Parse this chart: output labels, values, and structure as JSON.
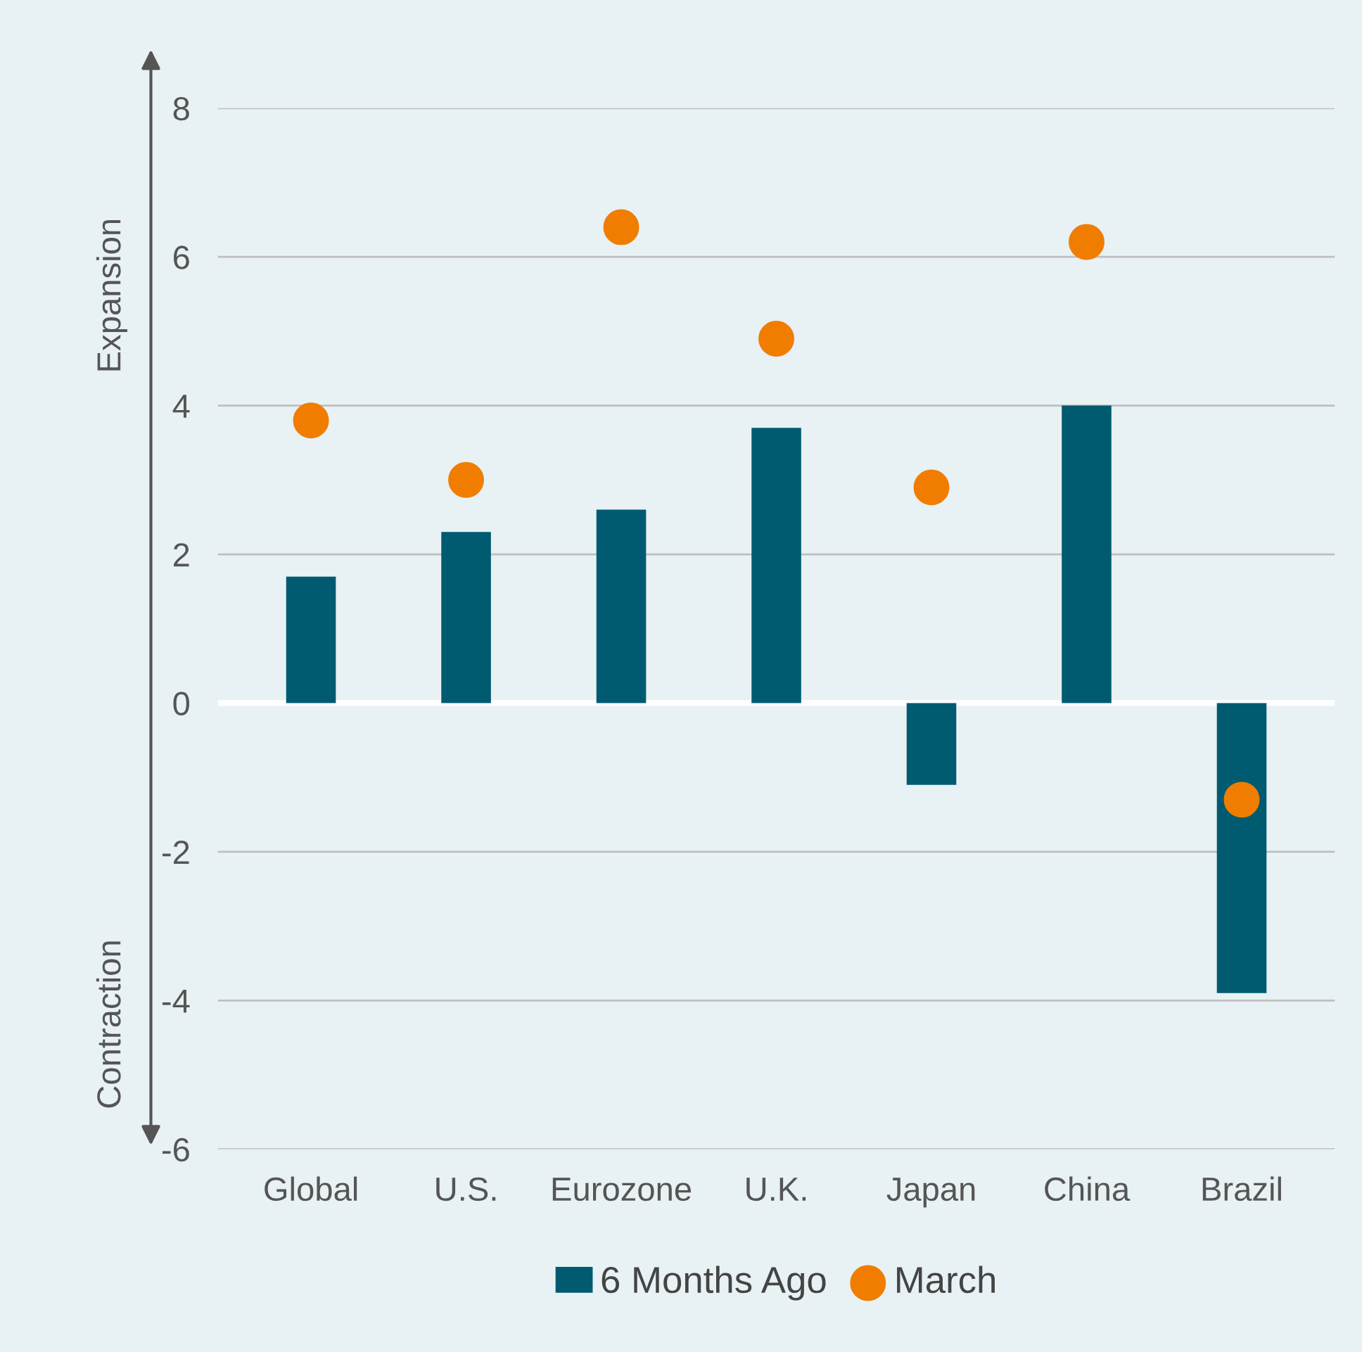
{
  "chart_data": {
    "type": "bar",
    "categories": [
      "Global",
      "U.S.",
      "Eurozone",
      "U.K.",
      "Japan",
      "China",
      "Brazil"
    ],
    "series": [
      {
        "name": "6 Months Ago",
        "color": "#005a70",
        "values": [
          1.7,
          2.3,
          2.6,
          3.7,
          -1.1,
          4.0,
          -3.9
        ]
      },
      {
        "name": "March",
        "type": "scatter",
        "color": "#f07d00",
        "x": [
          "Global",
          "U.S.",
          "Eurozone",
          "U.K.",
          "Japan",
          "China",
          "Brazil"
        ],
        "values": [
          3.8,
          3.0,
          6.4,
          4.9,
          2.9,
          6.2,
          -1.3
        ]
      }
    ],
    "annotations": [
      "Expansion",
      "Contraction"
    ],
    "ylim": [
      -6,
      8
    ],
    "yticks": [
      -6,
      -4,
      -2,
      0,
      2,
      4,
      6,
      8
    ],
    "ref_lines": [
      {
        "axis": "y",
        "value": 0,
        "color": "#ffffff"
      }
    ],
    "grid": "y",
    "legend": "bottom",
    "marker": "circle"
  }
}
